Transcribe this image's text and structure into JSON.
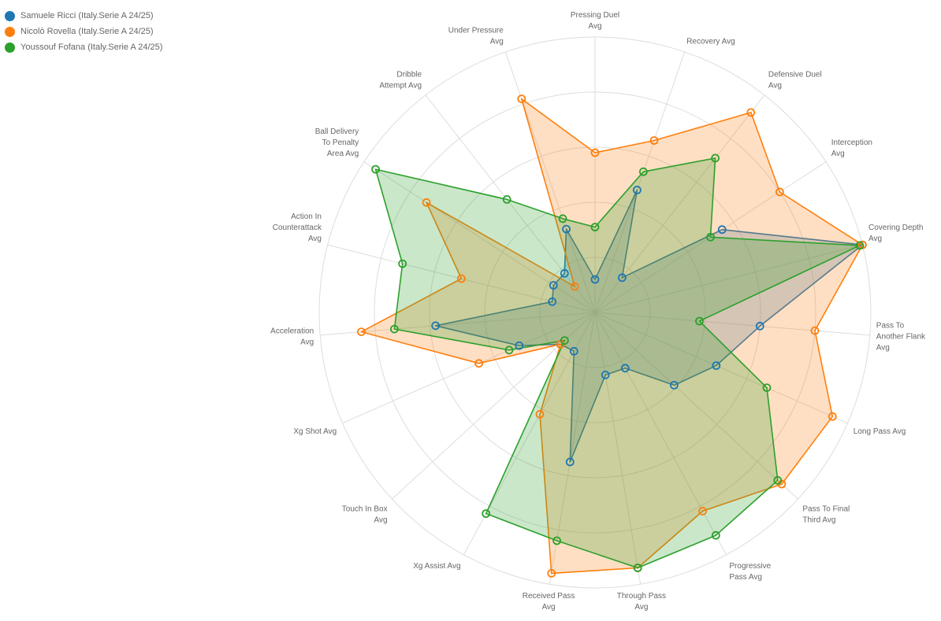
{
  "chart_data": {
    "type": "radar",
    "legend_position": "top-left",
    "grid": true,
    "range": [
      0,
      1
    ],
    "axes": [
      "Pressing Duel\nAvg",
      "Recovery Avg",
      "Defensive Duel\nAvg",
      "Interception\nAvg",
      "Covering Depth\nAvg",
      "Pass To\nAnother Flank\nAvg",
      "Long Pass Avg",
      "Pass To Final\nThird Avg",
      "Progressive\nPass Avg",
      "Through Pass\nAvg",
      "Received Pass\nAvg",
      "Xg Assist Avg",
      "Touch In Box\nAvg",
      "Xg Shot Avg",
      "Acceleration\nAvg",
      "Action In\nCounterattack\nAvg",
      "Ball Delivery\nTo Penalty\nArea Avg",
      "Dribble\nAttempt Avg",
      "Under Pressure\nAvg"
    ],
    "series": [
      {
        "name": "Samuele Ricci (Italy.Serie A 24/25)",
        "color": "#1f77b4",
        "values": [
          0.12,
          0.47,
          0.16,
          0.55,
          1.0,
          0.6,
          0.48,
          0.39,
          0.23,
          0.23,
          0.55,
          0.16,
          0.17,
          0.3,
          0.58,
          0.16,
          0.18,
          0.18,
          0.32
        ]
      },
      {
        "name": "Nicolò Rovella (Italy.Serie A 24/25)",
        "color": "#ff7f0e",
        "values": [
          0.58,
          0.66,
          0.92,
          0.8,
          1.0,
          0.8,
          0.94,
          0.92,
          0.82,
          0.94,
          0.96,
          0.42,
          0.17,
          0.46,
          0.85,
          0.5,
          0.73,
          0.12,
          0.82
        ]
      },
      {
        "name": "Youssouf Fofana (Italy.Serie A 24/25)",
        "color": "#2ca02c",
        "values": [
          0.31,
          0.54,
          0.71,
          0.5,
          0.99,
          0.38,
          0.68,
          0.9,
          0.92,
          0.94,
          0.84,
          0.83,
          0.15,
          0.34,
          0.73,
          0.72,
          0.95,
          0.52,
          0.36
        ]
      }
    ]
  }
}
